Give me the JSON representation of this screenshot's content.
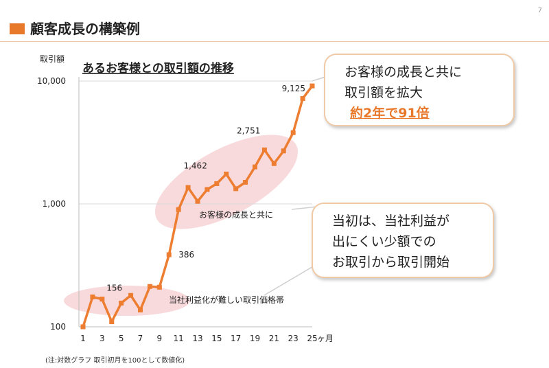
{
  "page_number": "7",
  "slide_title": "顧客成長の構築例",
  "footnote": "(注:対数グラフ 取引初月を100として数値化)",
  "callouts": {
    "top": {
      "line1": "お客様の成長と共に",
      "line2": "取引額を拡大",
      "highlight": "約2年で91倍"
    },
    "middle": {
      "line1": "当初は、当社利益が",
      "line2": "出にくい少額での",
      "line3": "お取引から取引開始"
    }
  },
  "annotations": {
    "growth_zone": "お客様の成長と共に",
    "low_zone": "当社利益化が難しい取引価格帯"
  },
  "colors": {
    "accent": "#e8782a",
    "line": "#ed7d31",
    "ellipse": "#f6cdd0",
    "callout_border": "#f0c9a6"
  },
  "chart_data": {
    "type": "line",
    "title": "あるお客様との取引額の推移",
    "ylabel": "取引額",
    "xlabel": "ヶ月",
    "y_scale": "log",
    "ylim": [
      100,
      10000
    ],
    "y_ticks": [
      100,
      1000,
      10000
    ],
    "y_tick_labels": [
      "100",
      "1,000",
      "10,000"
    ],
    "xlim": [
      1,
      25
    ],
    "x_ticks": [
      1,
      3,
      5,
      7,
      9,
      11,
      13,
      15,
      17,
      19,
      21,
      23,
      25
    ],
    "x_tick_labels": [
      "1",
      "3",
      "5",
      "7",
      "9",
      "11",
      "13",
      "15",
      "17",
      "19",
      "21",
      "23",
      "25"
    ],
    "grid": "horizontal",
    "series": [
      {
        "x": [
          1,
          2,
          3,
          4,
          5,
          6,
          7,
          8,
          9,
          10,
          11,
          12,
          13,
          14,
          15,
          16,
          17,
          18,
          19,
          20,
          21,
          22,
          23,
          24,
          25
        ],
        "values": [
          100,
          175,
          168,
          110,
          156,
          180,
          137,
          213,
          210,
          386,
          900,
          1360,
          1050,
          1310,
          1462,
          1750,
          1330,
          1500,
          2000,
          2751,
          2130,
          2700,
          3800,
          7200,
          9125
        ]
      }
    ],
    "data_labels": [
      {
        "x": 5,
        "text": "156"
      },
      {
        "x": 10,
        "text": "386"
      },
      {
        "x": 15,
        "text": "1,462"
      },
      {
        "x": 20,
        "text": "2,751"
      },
      {
        "x": 25,
        "text": "9,125"
      }
    ]
  }
}
